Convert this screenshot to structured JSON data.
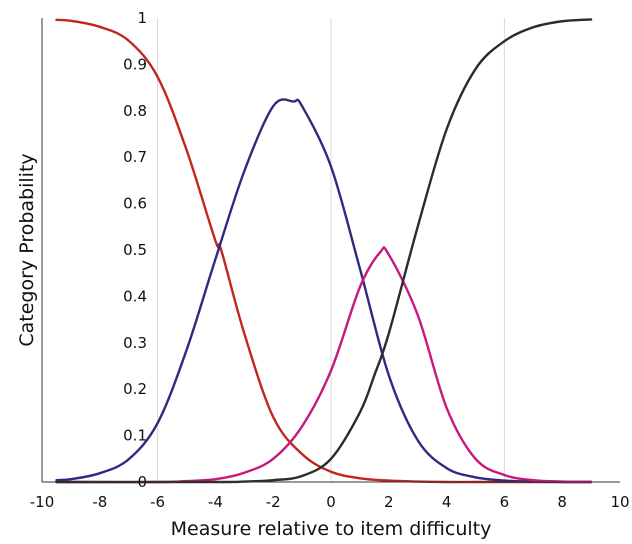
{
  "chart_data": {
    "type": "line",
    "title": "",
    "xlabel": "Measure relative to item difficulty",
    "ylabel": "Category Probability",
    "xlim": [
      -10,
      10
    ],
    "ylim": [
      0,
      1
    ],
    "x_ticks": [
      {
        "value": -10,
        "label": "-10"
      },
      {
        "value": -8,
        "label": "-8"
      },
      {
        "value": -6,
        "label": "-6"
      },
      {
        "value": -4,
        "label": "-4"
      },
      {
        "value": -2,
        "label": "-2"
      },
      {
        "value": 0,
        "label": "0"
      },
      {
        "value": 2,
        "label": "2"
      },
      {
        "value": 4,
        "label": "4"
      },
      {
        "value": 6,
        "label": "6"
      },
      {
        "value": 8,
        "label": "8"
      },
      {
        "value": 10,
        "label": "10"
      }
    ],
    "y_ticks": [
      {
        "value": 0,
        "label": "0"
      },
      {
        "value": 0.1,
        "label": "0.1"
      },
      {
        "value": 0.2,
        "label": "0.2"
      },
      {
        "value": 0.3,
        "label": "0.3"
      },
      {
        "value": 0.4,
        "label": "0.4"
      },
      {
        "value": 0.5,
        "label": "0.5"
      },
      {
        "value": 0.6,
        "label": "0.6"
      },
      {
        "value": 0.7,
        "label": "0.7"
      },
      {
        "value": 0.8,
        "label": "0.8"
      },
      {
        "value": 0.9,
        "label": "0.9"
      },
      {
        "value": 1,
        "label": "1"
      }
    ],
    "grid": {
      "vertical_at_x": [
        -6,
        0,
        6
      ]
    },
    "legend": "none",
    "series": [
      {
        "color": "#c0261d",
        "x": [
          -9.5,
          -9,
          -8,
          -7,
          -6,
          -5,
          -4,
          -3.8,
          -3,
          -2,
          -1,
          0,
          1,
          2,
          3,
          4,
          5,
          6,
          7,
          8,
          9
        ],
        "y": [
          0.996,
          0.994,
          0.981,
          0.951,
          0.873,
          0.716,
          0.52,
          0.5,
          0.32,
          0.14,
          0.06,
          0.022,
          0.008,
          0.003,
          0.001,
          0.0,
          0.0,
          0.0,
          0.0,
          0.0,
          0.0
        ]
      },
      {
        "color": "#2e2a7f",
        "x": [
          -9.5,
          -9,
          -8,
          -7,
          -6,
          -5,
          -4,
          -3,
          -2,
          -1.3,
          -1,
          0,
          1,
          2,
          3,
          4,
          5,
          6,
          7,
          8,
          9
        ],
        "y": [
          0.004,
          0.006,
          0.019,
          0.049,
          0.127,
          0.284,
          0.48,
          0.67,
          0.81,
          0.82,
          0.81,
          0.68,
          0.46,
          0.23,
          0.09,
          0.03,
          0.01,
          0.003,
          0.001,
          0.0,
          0.0
        ]
      },
      {
        "color": "#c8187e",
        "x": [
          -9.5,
          -6,
          -5,
          -4,
          -3,
          -2,
          -1,
          0,
          1,
          1.7,
          2,
          3,
          4,
          5,
          6,
          7,
          8,
          9
        ],
        "y": [
          0.0,
          0.0,
          0.002,
          0.006,
          0.02,
          0.05,
          0.12,
          0.24,
          0.42,
          0.495,
          0.49,
          0.36,
          0.16,
          0.05,
          0.015,
          0.004,
          0.001,
          0.0
        ]
      },
      {
        "color": "#2b2b2b",
        "x": [
          -9.5,
          -4,
          -3,
          -2,
          -1,
          0,
          1,
          1.5,
          2,
          3,
          4,
          5,
          6,
          7,
          8,
          9
        ],
        "y": [
          0.0,
          0.0,
          0.001,
          0.004,
          0.013,
          0.05,
          0.15,
          0.23,
          0.32,
          0.55,
          0.76,
          0.89,
          0.95,
          0.98,
          0.993,
          0.997
        ]
      }
    ]
  }
}
